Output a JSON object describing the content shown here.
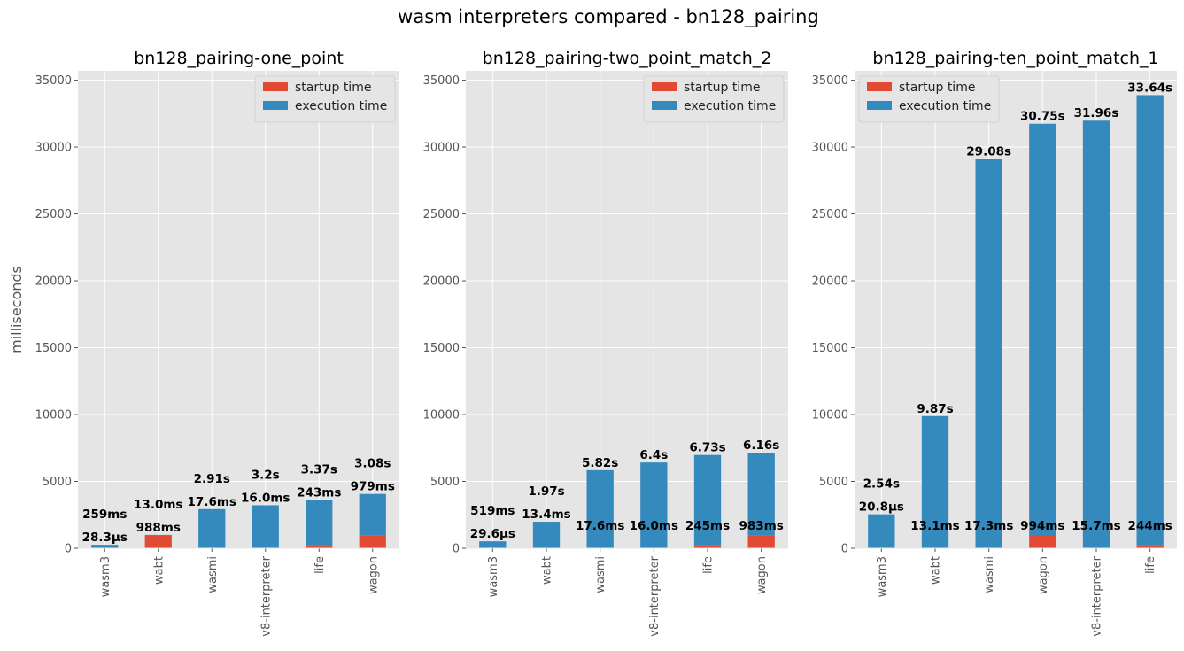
{
  "figure_title": "wasm interpreters compared - bn128_pairing",
  "colors": {
    "startup": "#E24A33",
    "execution": "#348ABD",
    "axes_bg": "#E5E5E5",
    "grid": "#FFFFFF"
  },
  "chart_data": [
    {
      "type": "bar",
      "stacked": true,
      "title": "bn128_pairing-one_point",
      "ylabel": "milliseconds",
      "xlabel": "",
      "ylim": [
        0,
        35700
      ],
      "yticks": [
        0,
        5000,
        10000,
        15000,
        20000,
        25000,
        30000,
        35000
      ],
      "grid": true,
      "legend": {
        "position": "top-right",
        "entries": [
          "startup time",
          "execution time"
        ]
      },
      "categories": [
        "wasm3",
        "wabt",
        "wasmi",
        "v8-interpreter",
        "life",
        "wagon"
      ],
      "series": [
        {
          "name": "startup time",
          "values": [
            0.0283,
            988,
            17.6,
            16.0,
            243,
            979
          ]
        },
        {
          "name": "execution time",
          "values": [
            259,
            13.0,
            2910,
            3200,
            3370,
            3080
          ]
        }
      ],
      "labels": {
        "startup": [
          "28.3µs",
          "988ms",
          "17.6ms",
          "16.0ms",
          "243ms",
          "979ms"
        ],
        "execution": [
          "259ms",
          "13.0ms",
          "2.91s",
          "3.2s",
          "3.37s",
          "3.08s"
        ]
      }
    },
    {
      "type": "bar",
      "stacked": true,
      "title": "bn128_pairing-two_point_match_2",
      "ylabel": "",
      "xlabel": "",
      "ylim": [
        0,
        35700
      ],
      "yticks": [
        0,
        5000,
        10000,
        15000,
        20000,
        25000,
        30000,
        35000
      ],
      "grid": true,
      "legend": {
        "position": "top-right",
        "entries": [
          "startup time",
          "execution time"
        ]
      },
      "categories": [
        "wasm3",
        "wabt",
        "wasmi",
        "v8-interpreter",
        "life",
        "wagon"
      ],
      "series": [
        {
          "name": "startup time",
          "values": [
            0.0296,
            13.4,
            17.6,
            16.0,
            245,
            983
          ]
        },
        {
          "name": "execution time",
          "values": [
            519,
            1970,
            5820,
            6400,
            6730,
            6160
          ]
        }
      ],
      "labels": {
        "startup": [
          "29.6µs",
          "13.4ms",
          "17.6ms",
          "16.0ms",
          "245ms",
          "983ms"
        ],
        "execution": [
          "519ms",
          "1.97s",
          "5.82s",
          "6.4s",
          "6.73s",
          "6.16s"
        ]
      }
    },
    {
      "type": "bar",
      "stacked": true,
      "title": "bn128_pairing-ten_point_match_1",
      "ylabel": "",
      "xlabel": "",
      "ylim": [
        0,
        35700
      ],
      "yticks": [
        0,
        5000,
        10000,
        15000,
        20000,
        25000,
        30000,
        35000
      ],
      "grid": true,
      "legend": {
        "position": "top-left",
        "entries": [
          "startup time",
          "execution time"
        ]
      },
      "categories": [
        "wasm3",
        "wabt",
        "wasmi",
        "wagon",
        "v8-interpreter",
        "life"
      ],
      "series": [
        {
          "name": "startup time",
          "values": [
            0.0208,
            13.1,
            17.3,
            994,
            15.7,
            244
          ]
        },
        {
          "name": "execution time",
          "values": [
            2540,
            9870,
            29080,
            30750,
            31960,
            33640
          ]
        }
      ],
      "labels": {
        "startup": [
          "20.8µs",
          "13.1ms",
          "17.3ms",
          "994ms",
          "15.7ms",
          "244ms"
        ],
        "execution": [
          "2.54s",
          "9.87s",
          "29.08s",
          "30.75s",
          "31.96s",
          "33.64s"
        ]
      }
    }
  ]
}
